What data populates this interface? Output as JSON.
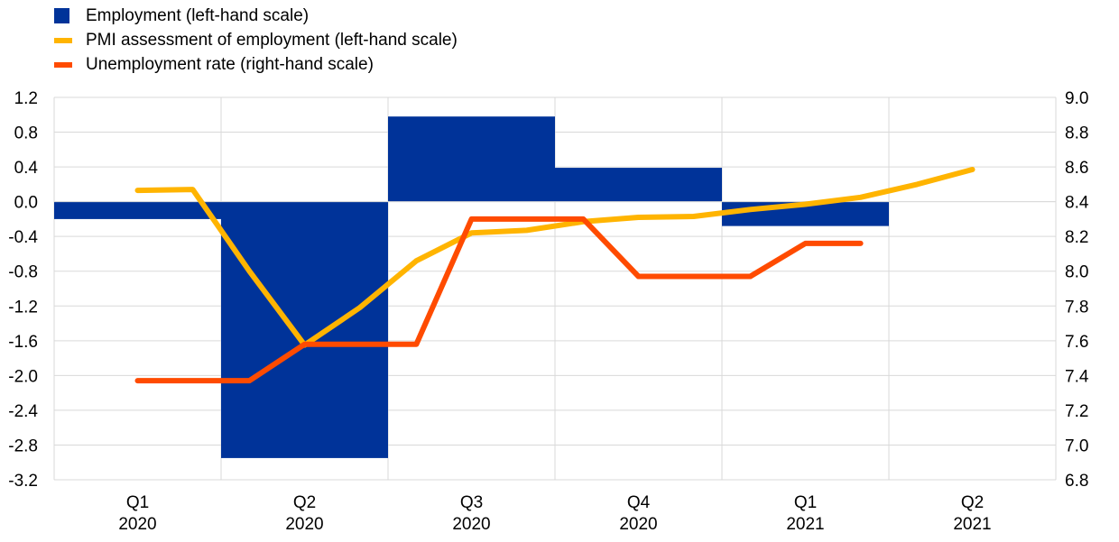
{
  "chart_data": {
    "type": "bar+line",
    "categories": [
      {
        "label": "Q1",
        "year": "2020"
      },
      {
        "label": "Q2",
        "year": "2020"
      },
      {
        "label": "Q3",
        "year": "2020"
      },
      {
        "label": "Q4",
        "year": "2020"
      },
      {
        "label": "Q1",
        "year": "2021"
      },
      {
        "label": "Q2",
        "year": "2021"
      }
    ],
    "left_axis": {
      "min": -3.2,
      "max": 1.2,
      "ticks": [
        "1.2",
        "0.8",
        "0.4",
        "0.0",
        "-0.4",
        "-0.8",
        "-1.2",
        "-1.6",
        "-2.0",
        "-2.4",
        "-2.8",
        "-3.2"
      ]
    },
    "right_axis": {
      "min": 6.8,
      "max": 9.0,
      "ticks": [
        "9.0",
        "8.8",
        "8.6",
        "8.4",
        "8.2",
        "8.0",
        "7.8",
        "7.6",
        "7.4",
        "7.2",
        "7.0",
        "6.8"
      ]
    },
    "grid": true,
    "legend_position": "top-left",
    "series": [
      {
        "name": "Employment (left-hand scale)",
        "kind": "bar",
        "axis": "left",
        "color": "#003399",
        "values": [
          -0.2,
          -2.95,
          0.98,
          0.39,
          -0.28,
          null
        ]
      },
      {
        "name": "PMI assessment of employment (left-hand scale)",
        "kind": "line",
        "axis": "left",
        "color": "#FFB400",
        "x": [
          0.5,
          0.83,
          1.17,
          1.5,
          1.83,
          2.17,
          2.5,
          2.83,
          3.17,
          3.5,
          3.83,
          4.17,
          4.5,
          4.83,
          5.17,
          5.5
        ],
        "values": [
          0.13,
          0.14,
          -0.8,
          -1.65,
          -1.22,
          -0.68,
          -0.36,
          -0.33,
          -0.23,
          -0.18,
          -0.17,
          -0.09,
          -0.03,
          0.05,
          0.2,
          0.37
        ]
      },
      {
        "name": "Unemployment rate (right-hand scale)",
        "kind": "line",
        "axis": "right",
        "color": "#FF4B00",
        "x": [
          0.5,
          0.83,
          1.17,
          1.5,
          1.83,
          2.17,
          2.5,
          2.83,
          3.17,
          3.5,
          3.83,
          4.17,
          4.5,
          4.83
        ],
        "values": [
          7.37,
          7.37,
          7.37,
          7.58,
          7.58,
          7.58,
          8.3,
          8.3,
          8.3,
          7.97,
          7.97,
          7.97,
          8.16,
          8.16
        ]
      }
    ]
  }
}
